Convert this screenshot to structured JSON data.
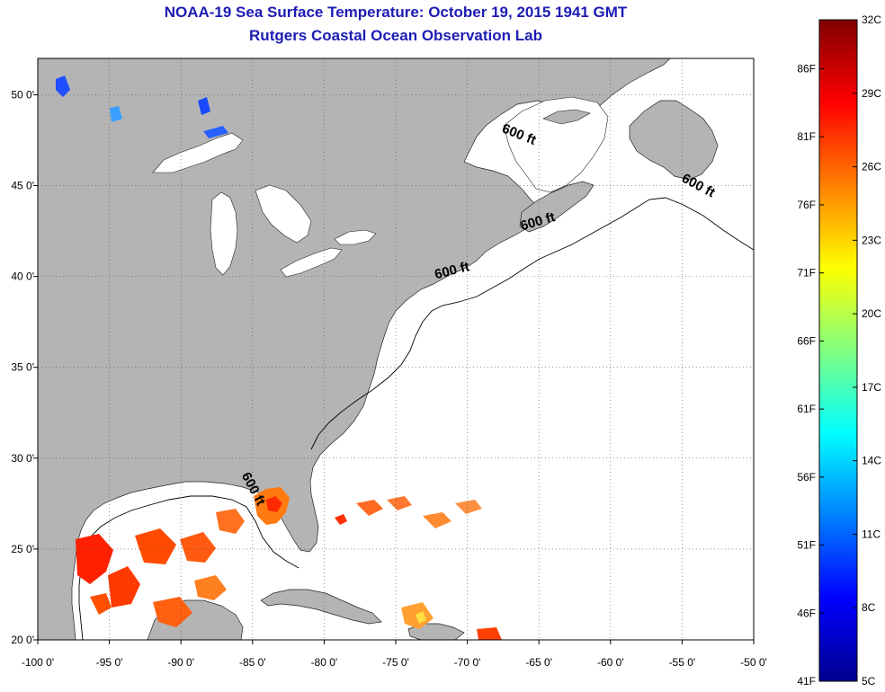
{
  "header": {
    "title": "NOAA-19 Sea Surface Temperature:  October 19, 2015 1941 GMT",
    "subtitle": "Rutgers Coastal Ocean Observation Lab"
  },
  "map": {
    "lon_range": [
      -100,
      -50
    ],
    "lat_range": [
      20,
      52
    ],
    "lon_ticks": [
      "-100 0'",
      "-95 0'",
      "-90 0'",
      "-85 0'",
      "-80 0'",
      "-75 0'",
      "-70 0'",
      "-65 0'",
      "-60 0'",
      "-55 0'",
      "-50 0'"
    ],
    "lat_ticks": [
      "20 0'",
      "25 0'",
      "30 0'",
      "35 0'",
      "40 0'",
      "45 0'",
      "50 0'"
    ],
    "land_color": "#b4b4b4",
    "ocean_color": "#ffffff",
    "isobath_labels": [
      {
        "text": "600 ft",
        "lon": -66.5,
        "lat": 47.6
      },
      {
        "text": "600 ft",
        "lon": -54.0,
        "lat": 44.8
      },
      {
        "text": "600 ft",
        "lon": -65.0,
        "lat": 42.8
      },
      {
        "text": "600 ft",
        "lon": -71.0,
        "lat": 40.1
      },
      {
        "text": "600 ft",
        "lon": -85.2,
        "lat": 28.2
      }
    ]
  },
  "colorbar": {
    "colors": [
      "#00008f",
      "#0000ff",
      "#0080ff",
      "#00ffff",
      "#80ff80",
      "#ffff00",
      "#ff8000",
      "#ff0000",
      "#800000"
    ],
    "celsius_labels": [
      "32C",
      "29C",
      "26C",
      "23C",
      "20C",
      "17C",
      "14C",
      "11C",
      "8C",
      "5C"
    ],
    "fahrenheit_labels": [
      "86F",
      "81F",
      "76F",
      "71F",
      "66F",
      "61F",
      "56F",
      "51F",
      "46F",
      "41F"
    ]
  }
}
